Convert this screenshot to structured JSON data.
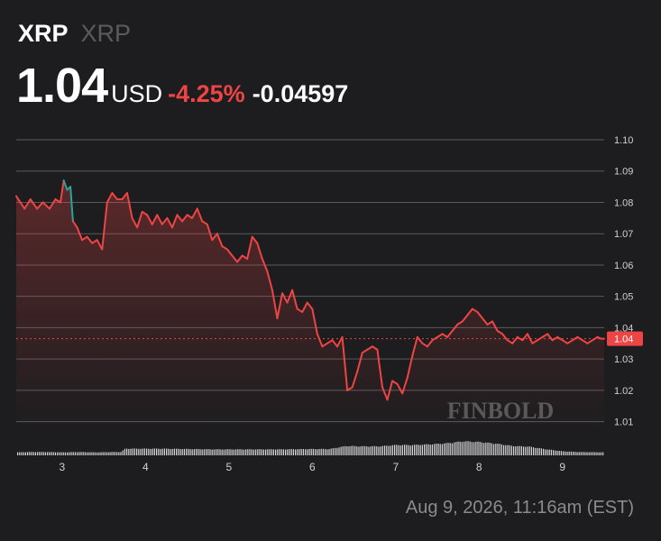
{
  "header": {
    "symbol": "XRP",
    "name": "XRP",
    "price": "1.04",
    "currency": "USD",
    "change_percent": "-4.25%",
    "change_value": "-0.04597"
  },
  "timestamp": "Aug 9, 2026, 11:16am (EST)",
  "watermark": "FINBOLD",
  "colors": {
    "background": "#1d1d1f",
    "line_down": "#ef4444",
    "line_up": "#26a69a",
    "grid": "#5a5a5e",
    "volume": "#d8d8d8"
  },
  "chart_data": {
    "type": "line",
    "ylim": [
      1.005,
      1.1
    ],
    "xlim": [
      2.45,
      9.5
    ],
    "y_ticks": [
      "1.10",
      "1.09",
      "1.08",
      "1.07",
      "1.06",
      "1.05",
      "1.04",
      "1.03",
      "1.02",
      "1.01"
    ],
    "x_ticks": [
      "3",
      "4",
      "5",
      "6",
      "7",
      "8",
      "9"
    ],
    "current_label": "1.04",
    "current_value": 1.0365,
    "grid": true,
    "series": [
      {
        "x": [
          2.45,
          2.55,
          2.62,
          2.7,
          2.77,
          2.85,
          2.92,
          2.98,
          3.02,
          3.06,
          3.1,
          3.13,
          3.18,
          3.24,
          3.3,
          3.36,
          3.42,
          3.48,
          3.54,
          3.6,
          3.66,
          3.72,
          3.78,
          3.84,
          3.9,
          3.96,
          4.02,
          4.08,
          4.14,
          4.2,
          4.26,
          4.32,
          4.38,
          4.44,
          4.5,
          4.56,
          4.62,
          4.68,
          4.74,
          4.8,
          4.86,
          4.92,
          4.98,
          5.04,
          5.1,
          5.16,
          5.22,
          5.28,
          5.34,
          5.4,
          5.46,
          5.52,
          5.58,
          5.64,
          5.7,
          5.76,
          5.82,
          5.88,
          5.94,
          6.0,
          6.06,
          6.12,
          6.18,
          6.24,
          6.3,
          6.36,
          6.42,
          6.48,
          6.54,
          6.6,
          6.66,
          6.72,
          6.78,
          6.84,
          6.9,
          6.96,
          7.02,
          7.08,
          7.14,
          7.2,
          7.26,
          7.32,
          7.38,
          7.44,
          7.5,
          7.56,
          7.62,
          7.68,
          7.74,
          7.8,
          7.86,
          7.92,
          7.98,
          8.04,
          8.1,
          8.16,
          8.22,
          8.28,
          8.34,
          8.4,
          8.46,
          8.52,
          8.58,
          8.64,
          8.7,
          8.76,
          8.82,
          8.88,
          8.94,
          9.0,
          9.06,
          9.12,
          9.18,
          9.24,
          9.3,
          9.36,
          9.42,
          9.46,
          9.5
        ],
        "y": [
          1.082,
          1.078,
          1.081,
          1.078,
          1.08,
          1.078,
          1.081,
          1.08,
          1.087,
          1.084,
          1.085,
          1.074,
          1.072,
          1.068,
          1.069,
          1.067,
          1.068,
          1.065,
          1.08,
          1.083,
          1.081,
          1.081,
          1.083,
          1.075,
          1.072,
          1.077,
          1.076,
          1.073,
          1.076,
          1.073,
          1.075,
          1.072,
          1.076,
          1.074,
          1.076,
          1.075,
          1.078,
          1.074,
          1.073,
          1.068,
          1.07,
          1.066,
          1.065,
          1.063,
          1.061,
          1.063,
          1.062,
          1.069,
          1.067,
          1.062,
          1.058,
          1.052,
          1.043,
          1.051,
          1.048,
          1.052,
          1.046,
          1.045,
          1.048,
          1.046,
          1.038,
          1.034,
          1.035,
          1.036,
          1.034,
          1.037,
          1.02,
          1.021,
          1.026,
          1.032,
          1.033,
          1.034,
          1.033,
          1.021,
          1.017,
          1.023,
          1.022,
          1.019,
          1.024,
          1.031,
          1.037,
          1.035,
          1.034,
          1.036,
          1.037,
          1.038,
          1.037,
          1.039,
          1.041,
          1.042,
          1.044,
          1.046,
          1.045,
          1.043,
          1.041,
          1.042,
          1.039,
          1.038,
          1.036,
          1.035,
          1.037,
          1.036,
          1.038,
          1.035,
          1.036,
          1.037,
          1.038,
          1.036,
          1.037,
          1.036,
          1.035,
          1.036,
          1.037,
          1.036,
          1.035,
          1.036,
          1.037,
          1.0365,
          1.0365
        ]
      }
    ],
    "volume": {
      "x": [
        2.45,
        2.6,
        2.8,
        3.0,
        3.2,
        3.4,
        3.6,
        3.7,
        3.75,
        3.9,
        4.2,
        4.5,
        4.8,
        5.2,
        5.6,
        6.0,
        6.2,
        6.4,
        6.6,
        6.8,
        7.0,
        7.2,
        7.4,
        7.6,
        7.8,
        8.0,
        8.2,
        8.4,
        8.6,
        8.8,
        9.0,
        9.2,
        9.5
      ],
      "y": [
        0.09,
        0.1,
        0.1,
        0.09,
        0.1,
        0.09,
        0.1,
        0.1,
        0.2,
        0.2,
        0.2,
        0.19,
        0.18,
        0.18,
        0.18,
        0.19,
        0.19,
        0.28,
        0.27,
        0.27,
        0.31,
        0.31,
        0.33,
        0.36,
        0.42,
        0.4,
        0.35,
        0.28,
        0.26,
        0.18,
        0.12,
        0.1,
        0.09
      ]
    }
  }
}
